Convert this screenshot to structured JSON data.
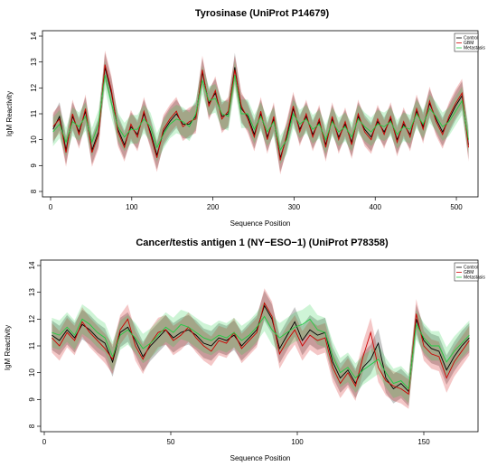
{
  "chart_data": [
    {
      "type": "line",
      "title": "Tyrosinase (UniProt P14679)",
      "xlabel": "Sequence Position",
      "ylabel": "IgM Reactivity",
      "xlim": [
        0,
        520
      ],
      "ylim": [
        8,
        14
      ],
      "xticks": [
        "0",
        "100",
        "200",
        "300",
        "400",
        "500"
      ],
      "xtick_values": [
        0,
        100,
        200,
        300,
        400,
        500
      ],
      "yticks": [
        "8",
        "9",
        "10",
        "11",
        "12",
        "13",
        "14"
      ],
      "ytick_values": [
        8,
        9,
        10,
        11,
        12,
        13,
        14
      ],
      "legend_position": "top-right",
      "grid": false,
      "band": "shaded variability band around each series line",
      "x": [
        3,
        11,
        19,
        27,
        35,
        43,
        51,
        59,
        67,
        75,
        83,
        91,
        99,
        107,
        115,
        123,
        131,
        139,
        147,
        155,
        163,
        171,
        179,
        187,
        195,
        203,
        211,
        219,
        227,
        235,
        243,
        251,
        259,
        267,
        275,
        283,
        291,
        299,
        307,
        315,
        323,
        331,
        339,
        347,
        355,
        363,
        371,
        379,
        387,
        395,
        403,
        411,
        419,
        427,
        435,
        443,
        451,
        459,
        467,
        475,
        483,
        491,
        499,
        507,
        515
      ],
      "series": [
        {
          "name": "Control",
          "color": "#000000",
          "values": [
            10.4,
            10.9,
            9.6,
            10.9,
            10.3,
            11.1,
            9.6,
            10.3,
            12.8,
            11.8,
            10.4,
            9.8,
            10.5,
            10.2,
            11.0,
            10.3,
            9.4,
            10.3,
            10.7,
            11.0,
            10.6,
            10.6,
            10.9,
            12.6,
            11.4,
            11.8,
            10.9,
            11.0,
            12.8,
            11.2,
            10.9,
            10.2,
            11.0,
            10.1,
            10.8,
            9.3,
            10.1,
            11.2,
            10.4,
            10.9,
            10.2,
            10.7,
            9.8,
            10.8,
            10.1,
            10.6,
            9.9,
            10.9,
            10.4,
            10.1,
            10.7,
            10.3,
            10.8,
            10.0,
            10.6,
            10.2,
            11.1,
            10.5,
            11.4,
            10.8,
            10.3,
            10.8,
            11.3,
            11.7,
            9.8
          ]
        },
        {
          "name": "GBM",
          "color": "#cc0000",
          "values": [
            10.5,
            10.8,
            9.5,
            11.0,
            10.2,
            11.2,
            9.5,
            10.2,
            12.9,
            11.9,
            10.3,
            9.7,
            10.6,
            10.1,
            11.1,
            10.2,
            9.3,
            10.4,
            10.8,
            11.1,
            10.5,
            10.7,
            10.8,
            12.7,
            11.3,
            11.9,
            10.8,
            11.1,
            12.7,
            11.3,
            10.8,
            10.1,
            11.1,
            10.0,
            10.9,
            9.2,
            10.2,
            11.3,
            10.3,
            11.0,
            10.1,
            10.8,
            9.7,
            10.9,
            10.0,
            10.7,
            9.8,
            11.0,
            10.3,
            10.0,
            10.8,
            10.2,
            10.9,
            9.9,
            10.7,
            10.1,
            11.2,
            10.4,
            11.5,
            10.7,
            10.2,
            10.9,
            11.4,
            11.8,
            9.7
          ]
        },
        {
          "name": "Metastasis",
          "color": "#22cc44",
          "values": [
            10.3,
            10.6,
            9.9,
            10.7,
            10.5,
            10.9,
            9.9,
            10.6,
            12.5,
            11.4,
            10.5,
            10.1,
            10.4,
            10.4,
            10.8,
            10.5,
            9.7,
            10.2,
            10.6,
            10.8,
            10.7,
            10.5,
            11.0,
            12.3,
            11.5,
            11.6,
            11.0,
            10.9,
            12.5,
            11.0,
            11.0,
            10.4,
            10.9,
            10.3,
            10.7,
            9.6,
            10.0,
            11.0,
            10.6,
            10.8,
            10.4,
            10.6,
            10.0,
            10.7,
            10.3,
            10.5,
            10.1,
            10.8,
            10.5,
            10.3,
            10.6,
            10.5,
            10.7,
            10.2,
            10.5,
            10.4,
            11.0,
            10.6,
            11.2,
            10.9,
            10.5,
            10.7,
            11.1,
            11.5,
            10.0
          ]
        }
      ]
    },
    {
      "type": "line",
      "title": "Cancer/testis antigen 1 (NY−ESO−1)  (UniProt P78358)",
      "xlabel": "Sequence Position",
      "ylabel": "IgM Reactivity",
      "xlim": [
        0,
        170
      ],
      "ylim": [
        8,
        14
      ],
      "xticks": [
        "0",
        "50",
        "100",
        "150"
      ],
      "xtick_values": [
        0,
        50,
        100,
        150
      ],
      "yticks": [
        "8",
        "9",
        "10",
        "11",
        "12",
        "13",
        "14"
      ],
      "ytick_values": [
        8,
        9,
        10,
        11,
        12,
        13,
        14
      ],
      "legend_position": "top-right",
      "grid": false,
      "band": "shaded variability band around each series line",
      "x": [
        3,
        6,
        9,
        12,
        15,
        18,
        21,
        24,
        27,
        30,
        33,
        36,
        39,
        42,
        45,
        48,
        51,
        54,
        57,
        60,
        63,
        66,
        69,
        72,
        75,
        78,
        81,
        84,
        87,
        90,
        93,
        96,
        99,
        102,
        105,
        108,
        111,
        114,
        117,
        120,
        123,
        126,
        129,
        132,
        135,
        138,
        141,
        144,
        147,
        150,
        153,
        156,
        159,
        162,
        165,
        168
      ],
      "series": [
        {
          "name": "Control",
          "color": "#000000",
          "values": [
            11.4,
            11.2,
            11.6,
            11.3,
            11.8,
            11.6,
            11.3,
            11.1,
            10.4,
            11.5,
            11.7,
            11.2,
            10.6,
            11.0,
            11.3,
            11.6,
            11.3,
            11.5,
            11.6,
            11.4,
            11.1,
            11.0,
            11.3,
            11.2,
            11.4,
            11.0,
            11.3,
            11.6,
            12.5,
            12.0,
            10.9,
            11.4,
            11.9,
            11.2,
            11.6,
            11.4,
            11.5,
            10.4,
            9.8,
            10.1,
            9.6,
            10.2,
            10.5,
            11.1,
            9.8,
            9.4,
            9.6,
            9.3,
            12.0,
            11.2,
            10.9,
            10.8,
            10.1,
            10.6,
            11.0,
            11.3
          ]
        },
        {
          "name": "GBM",
          "color": "#cc0000",
          "values": [
            11.3,
            11.0,
            11.5,
            11.2,
            11.9,
            11.5,
            11.2,
            10.9,
            10.5,
            11.6,
            12.0,
            11.0,
            10.5,
            11.1,
            11.5,
            11.6,
            11.2,
            11.4,
            11.7,
            11.3,
            11.0,
            10.8,
            11.2,
            11.1,
            11.5,
            10.9,
            11.2,
            11.5,
            12.6,
            12.1,
            10.7,
            11.2,
            11.6,
            11.0,
            11.4,
            11.2,
            11.3,
            10.2,
            9.6,
            10.0,
            9.5,
            10.6,
            11.5,
            10.2,
            9.7,
            9.5,
            9.4,
            9.2,
            12.2,
            11.0,
            10.7,
            10.6,
            9.8,
            10.4,
            10.8,
            11.2
          ]
        },
        {
          "name": "Metastasis",
          "color": "#22cc44",
          "values": [
            11.5,
            11.4,
            11.7,
            11.4,
            12.0,
            11.8,
            11.5,
            11.3,
            10.6,
            11.4,
            11.6,
            11.3,
            10.9,
            11.1,
            11.4,
            11.7,
            11.5,
            11.8,
            11.7,
            11.5,
            11.3,
            11.2,
            11.4,
            11.3,
            11.5,
            11.2,
            11.4,
            11.7,
            12.1,
            11.6,
            11.3,
            11.5,
            11.7,
            11.8,
            12.0,
            11.6,
            11.5,
            10.6,
            10.0,
            10.2,
            9.8,
            10.1,
            10.3,
            10.5,
            10.0,
            9.6,
            9.7,
            9.4,
            11.8,
            11.3,
            11.0,
            11.0,
            10.4,
            10.8,
            11.1,
            11.4
          ]
        }
      ]
    }
  ]
}
